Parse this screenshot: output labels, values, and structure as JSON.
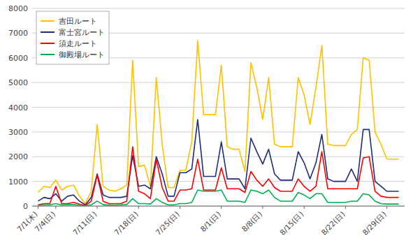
{
  "chart_data": {
    "type": "line",
    "categories": [
      "7/1(木)",
      null,
      null,
      "7/4(日)",
      null,
      null,
      null,
      null,
      null,
      null,
      "7/11(日)",
      null,
      null,
      null,
      null,
      null,
      null,
      "7/18(日)",
      null,
      null,
      null,
      null,
      null,
      null,
      "7/25(日)",
      null,
      null,
      null,
      null,
      null,
      null,
      "8/1(日)",
      null,
      null,
      null,
      null,
      null,
      null,
      "8/8(日)",
      null,
      null,
      null,
      null,
      null,
      null,
      "8/15(日)",
      null,
      null,
      null,
      null,
      null,
      null,
      "8/22(日)",
      null,
      null,
      null,
      null,
      null,
      null,
      "8/29(日)",
      null,
      null
    ],
    "series": [
      {
        "name": "吉田ルート",
        "color": "#FFC000",
        "values": [
          550,
          800,
          750,
          1050,
          650,
          800,
          850,
          400,
          100,
          600,
          3300,
          800,
          650,
          600,
          700,
          850,
          5900,
          1600,
          1650,
          800,
          5200,
          2500,
          750,
          750,
          1450,
          1450,
          2600,
          6700,
          3700,
          3700,
          3700,
          5700,
          2400,
          2300,
          2300,
          1400,
          5800,
          4800,
          3500,
          5200,
          2500,
          2400,
          2400,
          2400,
          5200,
          4500,
          3300,
          4800,
          6500,
          2500,
          2450,
          2450,
          2450,
          2900,
          3100,
          6000,
          5900,
          3000,
          2500,
          1900,
          1900,
          1900
        ]
      },
      {
        "name": "富士宮ルート",
        "color": "#1F2D7B",
        "values": [
          200,
          350,
          300,
          500,
          200,
          400,
          450,
          200,
          50,
          350,
          1300,
          450,
          350,
          350,
          350,
          400,
          2050,
          800,
          850,
          700,
          2000,
          1300,
          400,
          400,
          1350,
          1350,
          1500,
          3500,
          1200,
          1200,
          1200,
          2600,
          1100,
          1100,
          1100,
          700,
          2750,
          2200,
          1700,
          2300,
          1300,
          1050,
          1050,
          1050,
          2200,
          1750,
          1100,
          1750,
          2900,
          1100,
          1000,
          1000,
          1000,
          1500,
          1000,
          3100,
          3100,
          1000,
          800,
          600,
          600,
          600
        ]
      },
      {
        "name": "須走ルート",
        "color": "#FF0000",
        "values": [
          50,
          100,
          100,
          800,
          100,
          100,
          150,
          80,
          20,
          200,
          1250,
          200,
          100,
          100,
          100,
          200,
          2400,
          600,
          500,
          300,
          1900,
          750,
          200,
          200,
          650,
          650,
          700,
          1900,
          650,
          650,
          650,
          1550,
          700,
          700,
          700,
          550,
          1400,
          1050,
          800,
          1100,
          750,
          600,
          600,
          600,
          1100,
          800,
          600,
          800,
          2200,
          700,
          700,
          700,
          700,
          700,
          700,
          1950,
          2000,
          600,
          400,
          350,
          350,
          350
        ]
      },
      {
        "name": "御殿場ルート",
        "color": "#00B050",
        "values": [
          30,
          50,
          50,
          100,
          50,
          60,
          60,
          30,
          10,
          50,
          200,
          60,
          40,
          40,
          50,
          60,
          300,
          100,
          100,
          80,
          300,
          150,
          50,
          50,
          100,
          100,
          150,
          650,
          600,
          600,
          600,
          650,
          200,
          200,
          200,
          150,
          650,
          600,
          500,
          650,
          350,
          200,
          200,
          200,
          550,
          450,
          300,
          500,
          500,
          150,
          150,
          150,
          150,
          200,
          200,
          500,
          450,
          200,
          100,
          80,
          80,
          80
        ]
      }
    ],
    "ylim": [
      0,
      8000
    ],
    "yticks": [
      0,
      1000,
      2000,
      3000,
      4000,
      5000,
      6000,
      7000,
      8000
    ],
    "grid": true,
    "legend": "upper left"
  }
}
